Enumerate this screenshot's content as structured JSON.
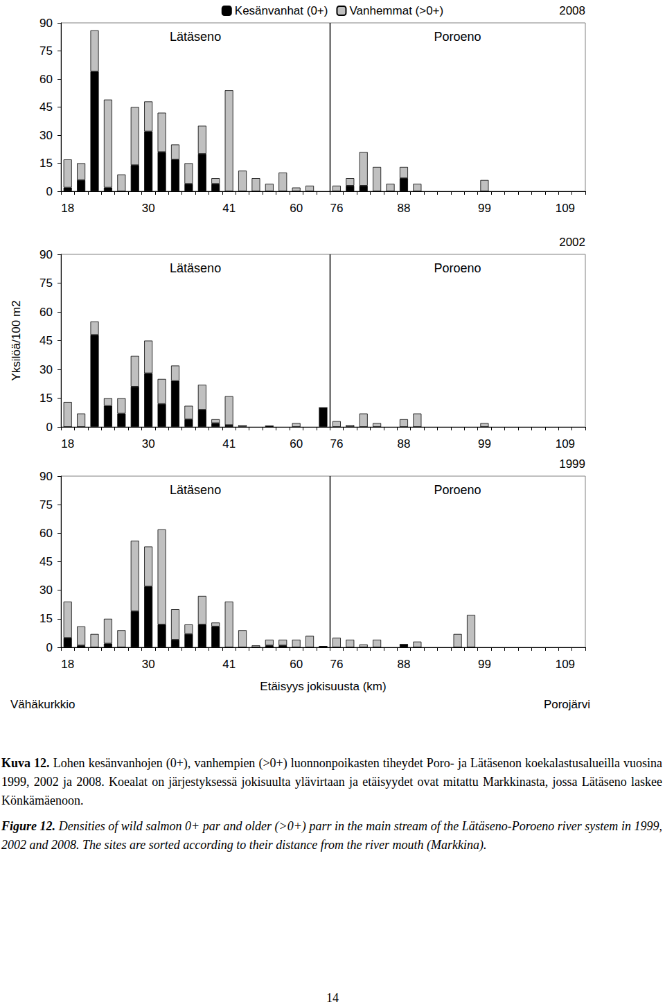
{
  "chart_data": [
    {
      "type": "bar",
      "title": "2008",
      "stacked": true,
      "grid": false,
      "legend": "top",
      "categories": [
        "18",
        null,
        null,
        null,
        null,
        null,
        "30",
        null,
        null,
        null,
        null,
        null,
        "41",
        null,
        null,
        null,
        null,
        "60",
        null,
        null,
        "76",
        null,
        null,
        null,
        null,
        "88",
        null,
        null,
        null,
        null,
        null,
        "99",
        null,
        null,
        null,
        null,
        null,
        "109",
        null
      ],
      "series": [
        {
          "name": "Kesänvanhat (0+)",
          "color": "#000000",
          "values": [
            2,
            6,
            64,
            2,
            0,
            14,
            32,
            21,
            17,
            4,
            20,
            4,
            0,
            0,
            0,
            0,
            0,
            0,
            0,
            null,
            0,
            3,
            3,
            0,
            0,
            7,
            0,
            null,
            null,
            null,
            null,
            0,
            null,
            null,
            null,
            null,
            null,
            null,
            null
          ]
        },
        {
          "name": "Vanhemmat (>0+)",
          "color": "#c0c0c0",
          "values": [
            15,
            9,
            22,
            47,
            9,
            31,
            16,
            21,
            8,
            11,
            15,
            3,
            54,
            11,
            7,
            4,
            10,
            2,
            3,
            null,
            3,
            4,
            18,
            13,
            4,
            6,
            4,
            null,
            null,
            null,
            null,
            6,
            null,
            null,
            null,
            null,
            null,
            null,
            null
          ]
        }
      ],
      "ylim": [
        0,
        90
      ],
      "yticks": [
        0,
        15,
        30,
        45,
        60,
        75,
        90
      ],
      "sections": [
        {
          "label": "Lätäseno",
          "first": 0,
          "last": 19
        },
        {
          "label": "Poroeno",
          "first": 20,
          "last": 38
        }
      ]
    },
    {
      "type": "bar",
      "title": "2002",
      "stacked": true,
      "grid": false,
      "ylabel": "Yksilöä/100 m2",
      "categories": [
        "18",
        null,
        null,
        null,
        null,
        null,
        "30",
        null,
        null,
        null,
        null,
        null,
        "41",
        null,
        null,
        null,
        null,
        "60",
        null,
        null,
        "76",
        null,
        null,
        null,
        null,
        "88",
        null,
        null,
        null,
        null,
        null,
        "99",
        null,
        null,
        null,
        null,
        null,
        "109",
        null
      ],
      "series": [
        {
          "name": "Kesänvanhat (0+)",
          "color": "#000000",
          "values": [
            0,
            0,
            48,
            11,
            7,
            21,
            28,
            12,
            24,
            4,
            9,
            2,
            1,
            0,
            null,
            0.5,
            null,
            0,
            null,
            10,
            0,
            0,
            0,
            0,
            null,
            0,
            0,
            null,
            null,
            null,
            null,
            0,
            null,
            null,
            null,
            null,
            null,
            null,
            null
          ]
        },
        {
          "name": "Vanhemmat (>0+)",
          "color": "#c0c0c0",
          "values": [
            13,
            7,
            7,
            4,
            8,
            16,
            17,
            13,
            8,
            7,
            13,
            2,
            15,
            1,
            null,
            0,
            null,
            2,
            null,
            0,
            3,
            1,
            7,
            2,
            null,
            4,
            7,
            null,
            null,
            null,
            null,
            2,
            null,
            null,
            null,
            null,
            null,
            null,
            null
          ]
        }
      ],
      "ylim": [
        0,
        90
      ],
      "yticks": [
        0,
        15,
        30,
        45,
        60,
        75,
        90
      ],
      "sections": [
        {
          "label": "Lätäseno",
          "first": 0,
          "last": 19
        },
        {
          "label": "Poroeno",
          "first": 20,
          "last": 38
        }
      ]
    },
    {
      "type": "bar",
      "title": "1999",
      "stacked": true,
      "grid": false,
      "xlabel": "Etäisyys jokisuusta (km)",
      "xlabel_start": "Vähäkurkkio",
      "xlabel_end": "Porojärvi",
      "categories": [
        "18",
        null,
        null,
        null,
        null,
        null,
        "30",
        null,
        null,
        null,
        null,
        null,
        "41",
        null,
        null,
        null,
        null,
        "60",
        null,
        null,
        "76",
        null,
        null,
        null,
        null,
        "88",
        null,
        null,
        null,
        null,
        null,
        "99",
        null,
        null,
        null,
        null,
        null,
        "109",
        null
      ],
      "series": [
        {
          "name": "Kesänvanhat (0+)",
          "color": "#000000",
          "values": [
            5,
            1,
            0,
            2,
            0,
            19,
            32,
            12,
            4,
            7,
            12,
            11,
            0,
            0,
            0,
            1,
            1,
            0,
            0,
            0.5,
            0,
            0,
            0,
            0,
            null,
            1.5,
            0,
            null,
            null,
            0,
            0,
            null,
            null,
            null,
            null,
            null,
            null,
            null,
            null
          ]
        },
        {
          "name": "Vanhemmat (>0+)",
          "color": "#c0c0c0",
          "values": [
            19,
            10,
            7,
            13,
            9,
            37,
            21,
            50,
            16,
            5,
            15,
            2,
            24,
            9,
            1,
            3,
            3,
            4,
            6,
            0,
            5,
            4,
            1.5,
            4,
            null,
            0,
            3,
            null,
            null,
            7,
            17,
            null,
            null,
            null,
            null,
            null,
            null,
            null,
            null
          ]
        }
      ],
      "ylim": [
        0,
        90
      ],
      "yticks": [
        0,
        15,
        30,
        45,
        60,
        75,
        90
      ],
      "sections": [
        {
          "label": "Lätäseno",
          "first": 0,
          "last": 19
        },
        {
          "label": "Poroeno",
          "first": 20,
          "last": 38
        }
      ]
    }
  ],
  "caption_fi": {
    "label": "Kuva 12.",
    "text": "Lohen kesänvanhojen (0+), vanhempien (>0+) luonnonpoikasten tiheydet Poro- ja Lätäsenon koekalastusalueilla vuosina 1999, 2002 ja 2008. Koealat on järjestyksessä jokisuulta ylävirtaan ja etäisyydet ovat mitattu Markkinasta, jossa Lätäseno laskee Könkämäenoon."
  },
  "caption_en": {
    "label": "Figure 12.",
    "text": "Densities of wild salmon 0+ par and older (>0+) parr in the main stream of the Lätäseno-Poroeno river system in 1999, 2002 and 2008. The sites are sorted according to their distance from the river mouth (Markkina)."
  },
  "page_number": "14"
}
